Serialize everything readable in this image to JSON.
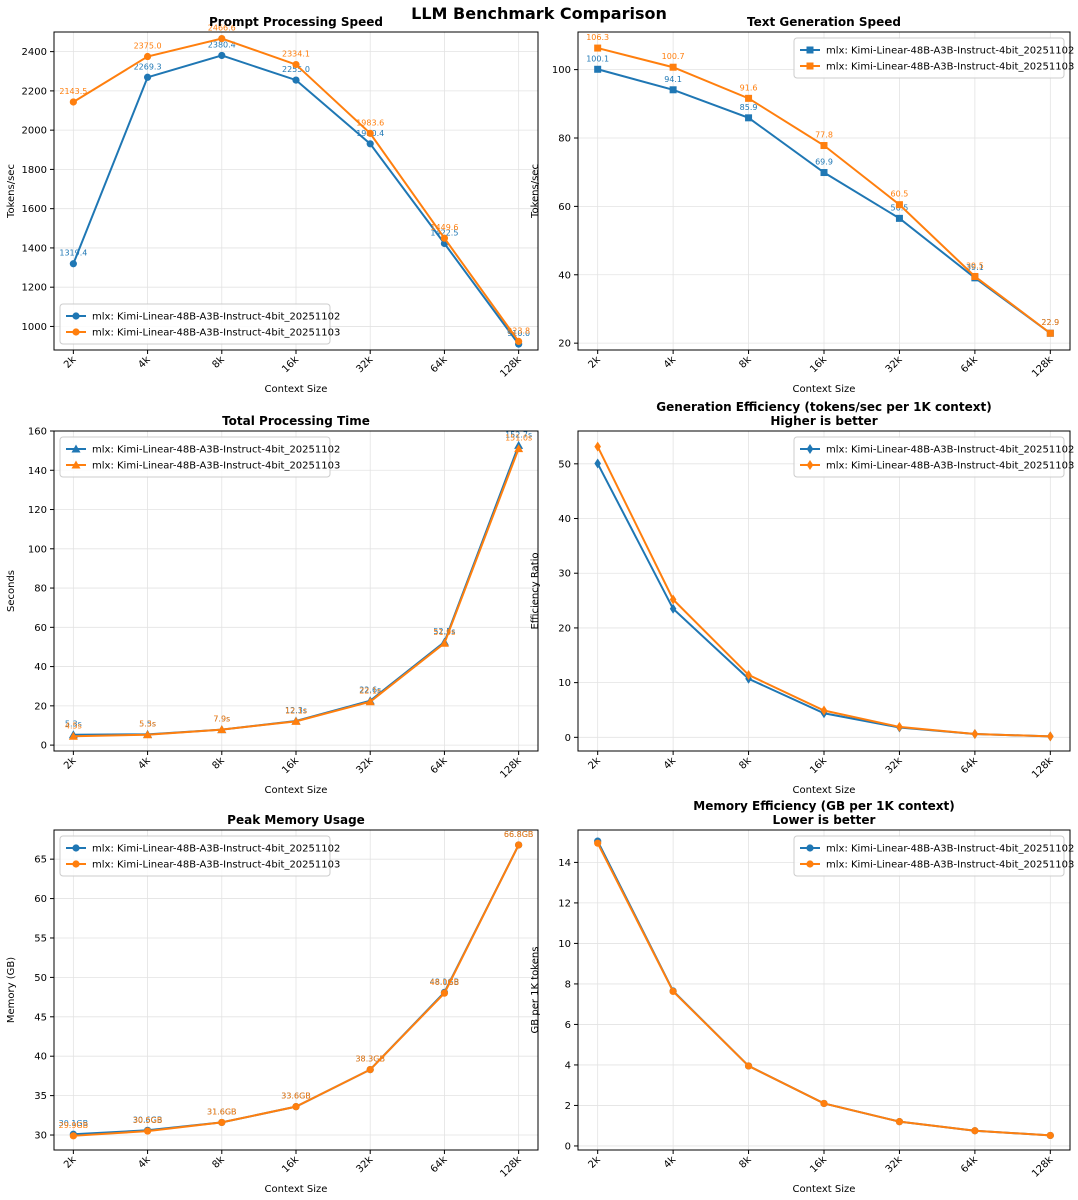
{
  "figure": {
    "title": "LLM Benchmark Comparison"
  },
  "colors": {
    "series1": "#1f77b4",
    "series2": "#ff7f0e"
  },
  "chart_data": [
    {
      "type": "line",
      "title": "Prompt Processing Speed",
      "subtitle": "",
      "xlabel": "Context Size",
      "ylabel": "Tokens/sec",
      "categories": [
        "2k",
        "4k",
        "8k",
        "16k",
        "32k",
        "64k",
        "128k"
      ],
      "ylim": [
        880,
        2500
      ],
      "yticks": [
        1000,
        1200,
        1400,
        1600,
        1800,
        2000,
        2200,
        2400
      ],
      "grid": true,
      "legend": "lower-left",
      "marker": "circle",
      "series": [
        {
          "name": "mlx: Kimi-Linear-48B-A3B-Instruct-4bit_20251102",
          "values": [
            1319.4,
            2269.3,
            2380.4,
            2255.0,
            1930.4,
            1422.5,
            910.0
          ],
          "labels": [
            "1319.4",
            "2269.3",
            "2380.4",
            "2255.0",
            "1930.4",
            "1422.5",
            "910.0"
          ]
        },
        {
          "name": "mlx: Kimi-Linear-48B-A3B-Instruct-4bit_20251103",
          "values": [
            2143.5,
            2375.0,
            2466.6,
            2334.1,
            1983.6,
            1449.6,
            923.8
          ],
          "labels": [
            "2143.5",
            "2375.0",
            "2466.6",
            "2334.1",
            "1983.6",
            "1449.6",
            "923.8"
          ]
        }
      ]
    },
    {
      "type": "line",
      "title": "Text Generation Speed",
      "subtitle": "",
      "xlabel": "Context Size",
      "ylabel": "Tokens/sec",
      "categories": [
        "2k",
        "4k",
        "8k",
        "16k",
        "32k",
        "64k",
        "128k"
      ],
      "ylim": [
        18,
        111
      ],
      "yticks": [
        20,
        40,
        60,
        80,
        100
      ],
      "grid": true,
      "legend": "top-right",
      "marker": "square",
      "series": [
        {
          "name": "mlx: Kimi-Linear-48B-A3B-Instruct-4bit_20251102",
          "values": [
            100.1,
            94.1,
            85.9,
            69.9,
            56.5,
            39.1,
            22.9
          ],
          "labels": [
            "100.1",
            "94.1",
            "85.9",
            "69.9",
            "56.5",
            "39.1",
            "22.9"
          ]
        },
        {
          "name": "mlx: Kimi-Linear-48B-A3B-Instruct-4bit_20251103",
          "values": [
            106.3,
            100.7,
            91.6,
            77.8,
            60.5,
            39.5,
            22.9
          ],
          "labels": [
            "106.3",
            "100.7",
            "91.6",
            "77.8",
            "60.5",
            "39.5",
            "22.9"
          ]
        }
      ]
    },
    {
      "type": "line",
      "title": "Total Processing Time",
      "subtitle": "",
      "xlabel": "Context Size",
      "ylabel": "Seconds",
      "categories": [
        "2k",
        "4k",
        "8k",
        "16k",
        "32k",
        "64k",
        "128k"
      ],
      "ylim": [
        -3,
        160
      ],
      "yticks": [
        0,
        20,
        40,
        60,
        80,
        100,
        120,
        140,
        160
      ],
      "grid": true,
      "legend": "top-left",
      "marker": "triangle",
      "series": [
        {
          "name": "mlx: Kimi-Linear-48B-A3B-Instruct-4bit_20251102",
          "values": [
            5.3,
            5.5,
            7.9,
            12.3,
            22.6,
            52.5,
            152.7
          ],
          "labels": [
            "5.3s",
            "5.5s",
            "7.9s",
            "12.3s",
            "22.6s",
            "52.5s",
            "152.7s"
          ]
        },
        {
          "name": "mlx: Kimi-Linear-48B-A3B-Instruct-4bit_20251103",
          "values": [
            4.5,
            5.3,
            7.9,
            12.1,
            22.1,
            51.9,
            151.0
          ],
          "labels": [
            "4.5s",
            "5.3s",
            "7.9s",
            "12.1s",
            "22.1s",
            "51.9s",
            "151.0s"
          ]
        }
      ]
    },
    {
      "type": "line",
      "title": "Generation Efficiency (tokens/sec per 1K context)",
      "subtitle": "Higher is better",
      "xlabel": "Context Size",
      "ylabel": "Efficiency Ratio",
      "categories": [
        "2k",
        "4k",
        "8k",
        "16k",
        "32k",
        "64k",
        "128k"
      ],
      "ylim": [
        -2.5,
        56
      ],
      "yticks": [
        0,
        10,
        20,
        30,
        40,
        50
      ],
      "grid": true,
      "legend": "top-right",
      "marker": "diamond",
      "series": [
        {
          "name": "mlx: Kimi-Linear-48B-A3B-Instruct-4bit_20251102",
          "values": [
            50.05,
            23.5,
            10.7,
            4.4,
            1.8,
            0.6,
            0.18
          ],
          "labels": []
        },
        {
          "name": "mlx: Kimi-Linear-48B-A3B-Instruct-4bit_20251103",
          "values": [
            53.15,
            25.2,
            11.4,
            4.9,
            1.9,
            0.6,
            0.18
          ],
          "labels": []
        }
      ]
    },
    {
      "type": "line",
      "title": "Peak Memory Usage",
      "subtitle": "",
      "xlabel": "Context Size",
      "ylabel": "Memory (GB)",
      "categories": [
        "2k",
        "4k",
        "8k",
        "16k",
        "32k",
        "64k",
        "128k"
      ],
      "ylim": [
        28.1,
        68.7
      ],
      "yticks": [
        30,
        35,
        40,
        45,
        50,
        55,
        60,
        65
      ],
      "grid": true,
      "legend": "top-left",
      "marker": "circle",
      "series": [
        {
          "name": "mlx: Kimi-Linear-48B-A3B-Instruct-4bit_20251102",
          "values": [
            30.1,
            30.6,
            31.6,
            33.6,
            38.3,
            48.1,
            66.8
          ],
          "labels": [
            "30.1GB",
            "30.6GB",
            "31.6GB",
            "33.6GB",
            "38.3GB",
            "48.1GB",
            "66.8GB"
          ]
        },
        {
          "name": "mlx: Kimi-Linear-48B-A3B-Instruct-4bit_20251103",
          "values": [
            29.9,
            30.5,
            31.6,
            33.6,
            38.3,
            48.0,
            66.8
          ],
          "labels": [
            "29.9GB",
            "30.5GB",
            "31.6GB",
            "33.6GB",
            "38.3GB",
            "48.0GB",
            "66.8GB"
          ]
        }
      ]
    },
    {
      "type": "line",
      "title": "Memory Efficiency (GB per 1K context)",
      "subtitle": "Lower is better",
      "xlabel": "Context Size",
      "ylabel": "GB per 1K tokens",
      "categories": [
        "2k",
        "4k",
        "8k",
        "16k",
        "32k",
        "64k",
        "128k"
      ],
      "ylim": [
        -0.2,
        15.6
      ],
      "yticks": [
        0,
        2,
        4,
        6,
        8,
        10,
        12,
        14
      ],
      "grid": true,
      "legend": "top-right",
      "marker": "circle",
      "series": [
        {
          "name": "mlx: Kimi-Linear-48B-A3B-Instruct-4bit_20251102",
          "values": [
            15.05,
            7.65,
            3.95,
            2.1,
            1.2,
            0.75,
            0.52
          ],
          "labels": []
        },
        {
          "name": "mlx: Kimi-Linear-48B-A3B-Instruct-4bit_20251103",
          "values": [
            14.95,
            7.63,
            3.95,
            2.1,
            1.2,
            0.75,
            0.52
          ],
          "labels": []
        }
      ]
    }
  ]
}
